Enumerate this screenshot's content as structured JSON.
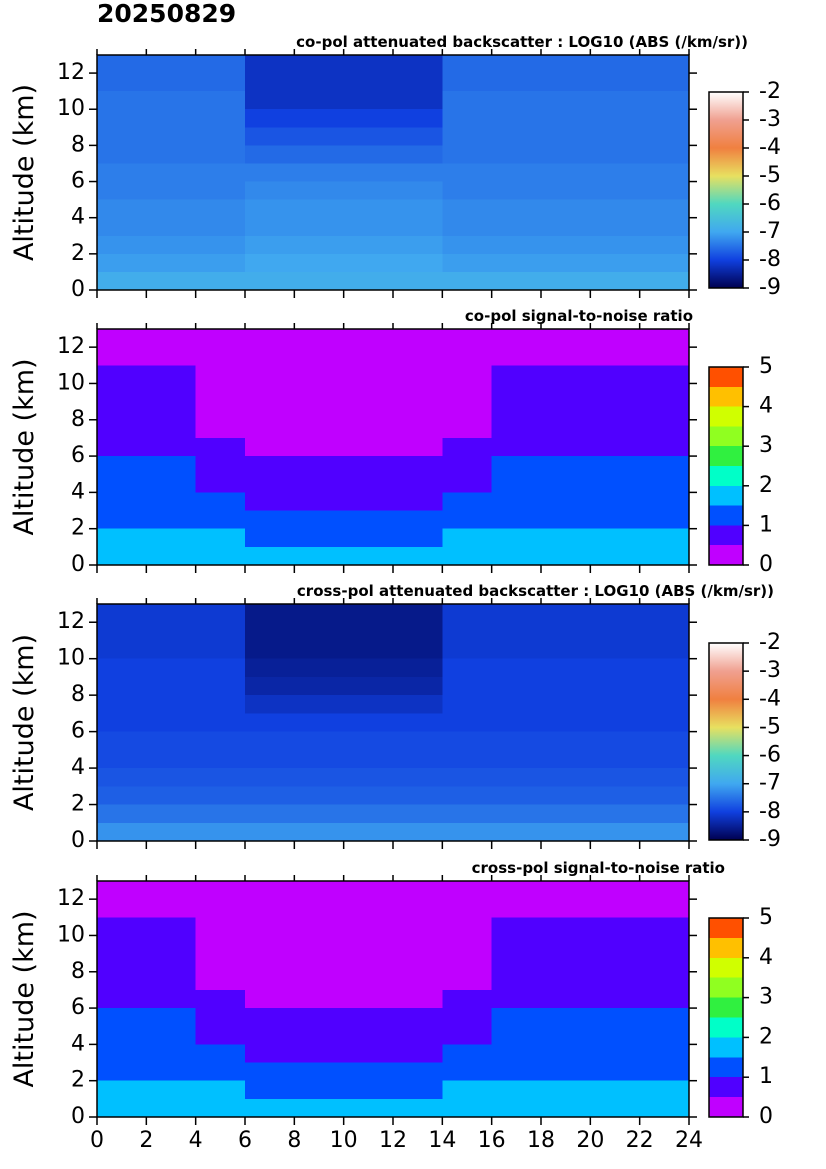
{
  "title": "20250829",
  "chart_data": [
    {
      "type": "heatmap",
      "title": "co-pol attenuated backscatter : LOG10 (ABS (/km/sr))",
      "ylabel": "Altitude (km)",
      "xlim": [
        0,
        24
      ],
      "ylim": [
        0,
        13
      ],
      "xticks": [
        0,
        2,
        4,
        6,
        8,
        10,
        12,
        14,
        16,
        18,
        20,
        22,
        24
      ],
      "yticks": [
        0,
        2,
        4,
        6,
        8,
        10,
        12
      ],
      "show_xtick_labels": false,
      "x_edges": [
        0,
        2,
        4,
        6,
        8,
        10,
        12,
        14,
        16,
        18,
        20,
        22,
        24
      ],
      "y_edges": [
        0,
        1,
        2,
        3,
        4,
        5,
        6,
        7,
        8,
        9,
        10,
        11,
        12,
        13
      ],
      "z": [
        [
          -6.9,
          -6.9,
          -6.9,
          -6.9,
          -6.9,
          -6.9,
          -6.9,
          -6.9,
          -6.9,
          -6.9,
          -6.9,
          -6.9
        ],
        [
          -7.1,
          -7.1,
          -7.1,
          -7.0,
          -7.0,
          -7.0,
          -7.0,
          -7.1,
          -7.1,
          -7.1,
          -7.1,
          -7.1
        ],
        [
          -7.2,
          -7.2,
          -7.2,
          -7.1,
          -7.1,
          -7.1,
          -7.1,
          -7.2,
          -7.2,
          -7.2,
          -7.2,
          -7.2
        ],
        [
          -7.3,
          -7.3,
          -7.3,
          -7.2,
          -7.2,
          -7.2,
          -7.2,
          -7.3,
          -7.3,
          -7.3,
          -7.3,
          -7.3
        ],
        [
          -7.3,
          -7.3,
          -7.3,
          -7.2,
          -7.2,
          -7.2,
          -7.2,
          -7.3,
          -7.3,
          -7.3,
          -7.3,
          -7.3
        ],
        [
          -7.4,
          -7.4,
          -7.4,
          -7.3,
          -7.3,
          -7.3,
          -7.3,
          -7.4,
          -7.4,
          -7.4,
          -7.4,
          -7.4
        ],
        [
          -7.4,
          -7.4,
          -7.4,
          -7.4,
          -7.4,
          -7.4,
          -7.4,
          -7.4,
          -7.4,
          -7.4,
          -7.4,
          -7.4
        ],
        [
          -7.5,
          -7.5,
          -7.5,
          -7.6,
          -7.6,
          -7.6,
          -7.6,
          -7.5,
          -7.5,
          -7.5,
          -7.5,
          -7.5
        ],
        [
          -7.5,
          -7.5,
          -7.5,
          -7.8,
          -7.8,
          -7.8,
          -7.8,
          -7.5,
          -7.5,
          -7.5,
          -7.5,
          -7.5
        ],
        [
          -7.5,
          -7.5,
          -7.5,
          -8.0,
          -8.0,
          -8.0,
          -8.0,
          -7.5,
          -7.5,
          -7.5,
          -7.5,
          -7.5
        ],
        [
          -7.5,
          -7.5,
          -7.5,
          -8.2,
          -8.2,
          -8.2,
          -8.2,
          -7.5,
          -7.5,
          -7.5,
          -7.5,
          -7.5
        ],
        [
          -7.6,
          -7.6,
          -7.6,
          -8.2,
          -8.2,
          -8.2,
          -8.2,
          -7.6,
          -7.6,
          -7.6,
          -7.6,
          -7.6
        ],
        [
          -7.6,
          -7.6,
          -7.6,
          -8.2,
          -8.2,
          -8.2,
          -8.2,
          -7.6,
          -7.6,
          -7.6,
          -7.6,
          -7.6
        ]
      ],
      "clim": [
        -9,
        -2
      ],
      "cticks": [
        -9,
        -8,
        -7,
        -6,
        -5,
        -4,
        -3,
        -2
      ],
      "discrete": false,
      "colors": [
        "#000050",
        "#1040e0",
        "#40a8f0",
        "#50d8c0",
        "#e8e060",
        "#f08040",
        "#f0a090",
        "#ffffff"
      ]
    },
    {
      "type": "heatmap",
      "title": "co-pol signal-to-noise ratio",
      "ylabel": "Altitude (km)",
      "xlim": [
        0,
        24
      ],
      "ylim": [
        0,
        13
      ],
      "xticks": [
        0,
        2,
        4,
        6,
        8,
        10,
        12,
        14,
        16,
        18,
        20,
        22,
        24
      ],
      "yticks": [
        0,
        2,
        4,
        6,
        8,
        10,
        12
      ],
      "show_xtick_labels": false,
      "x_edges": [
        0,
        2,
        4,
        6,
        8,
        10,
        12,
        14,
        16,
        18,
        20,
        22,
        24
      ],
      "y_edges": [
        0,
        1,
        2,
        3,
        4,
        5,
        6,
        7,
        8,
        9,
        10,
        11,
        12,
        13
      ],
      "z": [
        [
          1.7,
          1.7,
          1.7,
          1.7,
          1.7,
          1.7,
          1.7,
          1.7,
          1.7,
          1.7,
          1.7,
          1.7
        ],
        [
          1.7,
          1.7,
          1.7,
          1.2,
          1.2,
          1.2,
          1.2,
          1.7,
          1.7,
          1.7,
          1.7,
          1.7
        ],
        [
          1.2,
          1.2,
          1.2,
          1.2,
          1.2,
          1.2,
          1.2,
          1.2,
          1.2,
          1.2,
          1.2,
          1.2
        ],
        [
          1.2,
          1.2,
          1.2,
          0.7,
          0.7,
          0.7,
          0.7,
          1.2,
          1.2,
          1.2,
          1.2,
          1.2
        ],
        [
          1.2,
          1.2,
          0.7,
          0.7,
          0.7,
          0.7,
          0.7,
          0.7,
          1.2,
          1.2,
          1.2,
          1.2
        ],
        [
          1.2,
          1.2,
          0.7,
          0.7,
          0.7,
          0.7,
          0.7,
          0.7,
          1.2,
          1.2,
          1.2,
          1.2
        ],
        [
          0.7,
          0.7,
          0.7,
          0.3,
          0.3,
          0.3,
          0.3,
          0.7,
          0.7,
          0.7,
          0.7,
          0.7
        ],
        [
          0.7,
          0.7,
          0.3,
          0.3,
          0.3,
          0.3,
          0.3,
          0.3,
          0.7,
          0.7,
          0.7,
          0.7
        ],
        [
          0.7,
          0.7,
          0.3,
          0.2,
          0.2,
          0.2,
          0.2,
          0.3,
          0.7,
          0.7,
          0.7,
          0.7
        ],
        [
          0.7,
          0.7,
          0.3,
          0.1,
          0.1,
          0.1,
          0.1,
          0.3,
          0.7,
          0.7,
          0.7,
          0.7
        ],
        [
          0.7,
          0.7,
          0.3,
          0.1,
          0.1,
          0.1,
          0.1,
          0.3,
          0.7,
          0.7,
          0.7,
          0.7
        ],
        [
          0.3,
          0.3,
          0.3,
          0.1,
          0.1,
          0.1,
          0.1,
          0.3,
          0.3,
          0.3,
          0.3,
          0.3
        ],
        [
          0.3,
          0.3,
          0.3,
          0.1,
          0.1,
          0.1,
          0.1,
          0.3,
          0.3,
          0.3,
          0.3,
          0.3
        ]
      ],
      "clim": [
        0,
        5
      ],
      "cticks": [
        0,
        1,
        2,
        3,
        4,
        5
      ],
      "discrete": true,
      "colors": [
        "#c000ff",
        "#5000ff",
        "#0050ff",
        "#00c0ff",
        "#00ffc8",
        "#30f040",
        "#90ff20",
        "#d0ff00",
        "#ffc000",
        "#ff5000"
      ]
    },
    {
      "type": "heatmap",
      "title": "cross-pol attenuated backscatter : LOG10 (ABS (/km/sr))",
      "ylabel": "Altitude (km)",
      "xlim": [
        0,
        24
      ],
      "ylim": [
        0,
        13
      ],
      "xticks": [
        0,
        2,
        4,
        6,
        8,
        10,
        12,
        14,
        16,
        18,
        20,
        22,
        24
      ],
      "yticks": [
        0,
        2,
        4,
        6,
        8,
        10,
        12
      ],
      "show_xtick_labels": false,
      "x_edges": [
        0,
        2,
        4,
        6,
        8,
        10,
        12,
        14,
        16,
        18,
        20,
        22,
        24
      ],
      "y_edges": [
        0,
        1,
        2,
        3,
        4,
        5,
        6,
        7,
        8,
        9,
        10,
        11,
        12,
        13
      ],
      "z": [
        [
          -7.2,
          -7.2,
          -7.2,
          -7.2,
          -7.2,
          -7.2,
          -7.2,
          -7.2,
          -7.2,
          -7.2,
          -7.2,
          -7.2
        ],
        [
          -7.5,
          -7.5,
          -7.5,
          -7.5,
          -7.5,
          -7.5,
          -7.5,
          -7.5,
          -7.5,
          -7.5,
          -7.5,
          -7.5
        ],
        [
          -7.7,
          -7.7,
          -7.7,
          -7.7,
          -7.7,
          -7.7,
          -7.7,
          -7.7,
          -7.7,
          -7.7,
          -7.7,
          -7.7
        ],
        [
          -7.8,
          -7.8,
          -7.8,
          -7.8,
          -7.8,
          -7.8,
          -7.8,
          -7.8,
          -7.8,
          -7.8,
          -7.8,
          -7.8
        ],
        [
          -7.9,
          -7.9,
          -7.9,
          -7.9,
          -7.9,
          -7.9,
          -7.9,
          -7.9,
          -7.9,
          -7.9,
          -7.9,
          -7.9
        ],
        [
          -7.9,
          -7.9,
          -7.9,
          -7.9,
          -7.9,
          -7.9,
          -7.9,
          -7.9,
          -7.9,
          -7.9,
          -7.9,
          -7.9
        ],
        [
          -8.0,
          -8.0,
          -8.0,
          -8.0,
          -8.0,
          -8.0,
          -8.0,
          -8.0,
          -8.0,
          -8.0,
          -8.0,
          -8.0
        ],
        [
          -8.0,
          -8.0,
          -8.0,
          -8.2,
          -8.2,
          -8.2,
          -8.2,
          -8.0,
          -8.0,
          -8.0,
          -8.0,
          -8.0
        ],
        [
          -8.0,
          -8.0,
          -8.0,
          -8.4,
          -8.4,
          -8.4,
          -8.4,
          -8.0,
          -8.0,
          -8.0,
          -8.0,
          -8.0
        ],
        [
          -8.0,
          -8.0,
          -8.0,
          -8.5,
          -8.5,
          -8.5,
          -8.5,
          -8.0,
          -8.0,
          -8.0,
          -8.0,
          -8.0
        ],
        [
          -8.1,
          -8.1,
          -8.1,
          -8.6,
          -8.6,
          -8.6,
          -8.6,
          -8.1,
          -8.1,
          -8.1,
          -8.1,
          -8.1
        ],
        [
          -8.1,
          -8.1,
          -8.1,
          -8.6,
          -8.6,
          -8.6,
          -8.6,
          -8.1,
          -8.1,
          -8.1,
          -8.1,
          -8.1
        ],
        [
          -8.1,
          -8.1,
          -8.1,
          -8.6,
          -8.6,
          -8.6,
          -8.6,
          -8.1,
          -8.1,
          -8.1,
          -8.1,
          -8.1
        ]
      ],
      "clim": [
        -9,
        -2
      ],
      "cticks": [
        -9,
        -8,
        -7,
        -6,
        -5,
        -4,
        -3,
        -2
      ],
      "discrete": false,
      "colors": [
        "#000050",
        "#1040e0",
        "#40a8f0",
        "#50d8c0",
        "#e8e060",
        "#f08040",
        "#f0a090",
        "#ffffff"
      ]
    },
    {
      "type": "heatmap",
      "title": "cross-pol signal-to-noise ratio",
      "ylabel": "Altitude (km)",
      "xlim": [
        0,
        24
      ],
      "ylim": [
        0,
        13
      ],
      "xticks": [
        0,
        2,
        4,
        6,
        8,
        10,
        12,
        14,
        16,
        18,
        20,
        22,
        24
      ],
      "yticks": [
        0,
        2,
        4,
        6,
        8,
        10,
        12
      ],
      "show_xtick_labels": true,
      "x_edges": [
        0,
        2,
        4,
        6,
        8,
        10,
        12,
        14,
        16,
        18,
        20,
        22,
        24
      ],
      "y_edges": [
        0,
        1,
        2,
        3,
        4,
        5,
        6,
        7,
        8,
        9,
        10,
        11,
        12,
        13
      ],
      "z": [
        [
          1.7,
          1.7,
          1.7,
          1.7,
          1.7,
          1.7,
          1.7,
          1.7,
          1.7,
          1.7,
          1.7,
          1.7
        ],
        [
          1.7,
          1.7,
          1.7,
          1.2,
          1.2,
          1.2,
          1.2,
          1.7,
          1.7,
          1.7,
          1.7,
          1.7
        ],
        [
          1.2,
          1.2,
          1.2,
          1.2,
          1.2,
          1.2,
          1.2,
          1.2,
          1.2,
          1.2,
          1.2,
          1.2
        ],
        [
          1.2,
          1.2,
          1.2,
          0.7,
          0.7,
          0.7,
          0.7,
          1.2,
          1.2,
          1.2,
          1.2,
          1.2
        ],
        [
          1.2,
          1.2,
          0.7,
          0.7,
          0.7,
          0.7,
          0.7,
          0.7,
          1.2,
          1.2,
          1.2,
          1.2
        ],
        [
          1.2,
          1.2,
          0.7,
          0.7,
          0.7,
          0.7,
          0.7,
          0.7,
          1.2,
          1.2,
          1.2,
          1.2
        ],
        [
          0.7,
          0.7,
          0.7,
          0.3,
          0.3,
          0.3,
          0.3,
          0.7,
          0.7,
          0.7,
          0.7,
          0.7
        ],
        [
          0.7,
          0.7,
          0.3,
          0.3,
          0.3,
          0.3,
          0.3,
          0.3,
          0.7,
          0.7,
          0.7,
          0.7
        ],
        [
          0.7,
          0.7,
          0.3,
          0.2,
          0.2,
          0.2,
          0.2,
          0.3,
          0.7,
          0.7,
          0.7,
          0.7
        ],
        [
          0.7,
          0.7,
          0.3,
          0.1,
          0.1,
          0.1,
          0.1,
          0.3,
          0.7,
          0.7,
          0.7,
          0.7
        ],
        [
          0.7,
          0.7,
          0.3,
          0.1,
          0.1,
          0.1,
          0.1,
          0.3,
          0.7,
          0.7,
          0.7,
          0.7
        ],
        [
          0.3,
          0.3,
          0.3,
          0.1,
          0.1,
          0.1,
          0.1,
          0.3,
          0.3,
          0.3,
          0.3,
          0.3
        ],
        [
          0.3,
          0.3,
          0.3,
          0.1,
          0.1,
          0.1,
          0.1,
          0.3,
          0.3,
          0.3,
          0.3,
          0.3
        ]
      ],
      "clim": [
        0,
        5
      ],
      "cticks": [
        0,
        1,
        2,
        3,
        4,
        5
      ],
      "discrete": true,
      "colors": [
        "#c000ff",
        "#5000ff",
        "#0050ff",
        "#00c0ff",
        "#00ffc8",
        "#30f040",
        "#90ff20",
        "#d0ff00",
        "#ffc000",
        "#ff5000"
      ]
    }
  ]
}
